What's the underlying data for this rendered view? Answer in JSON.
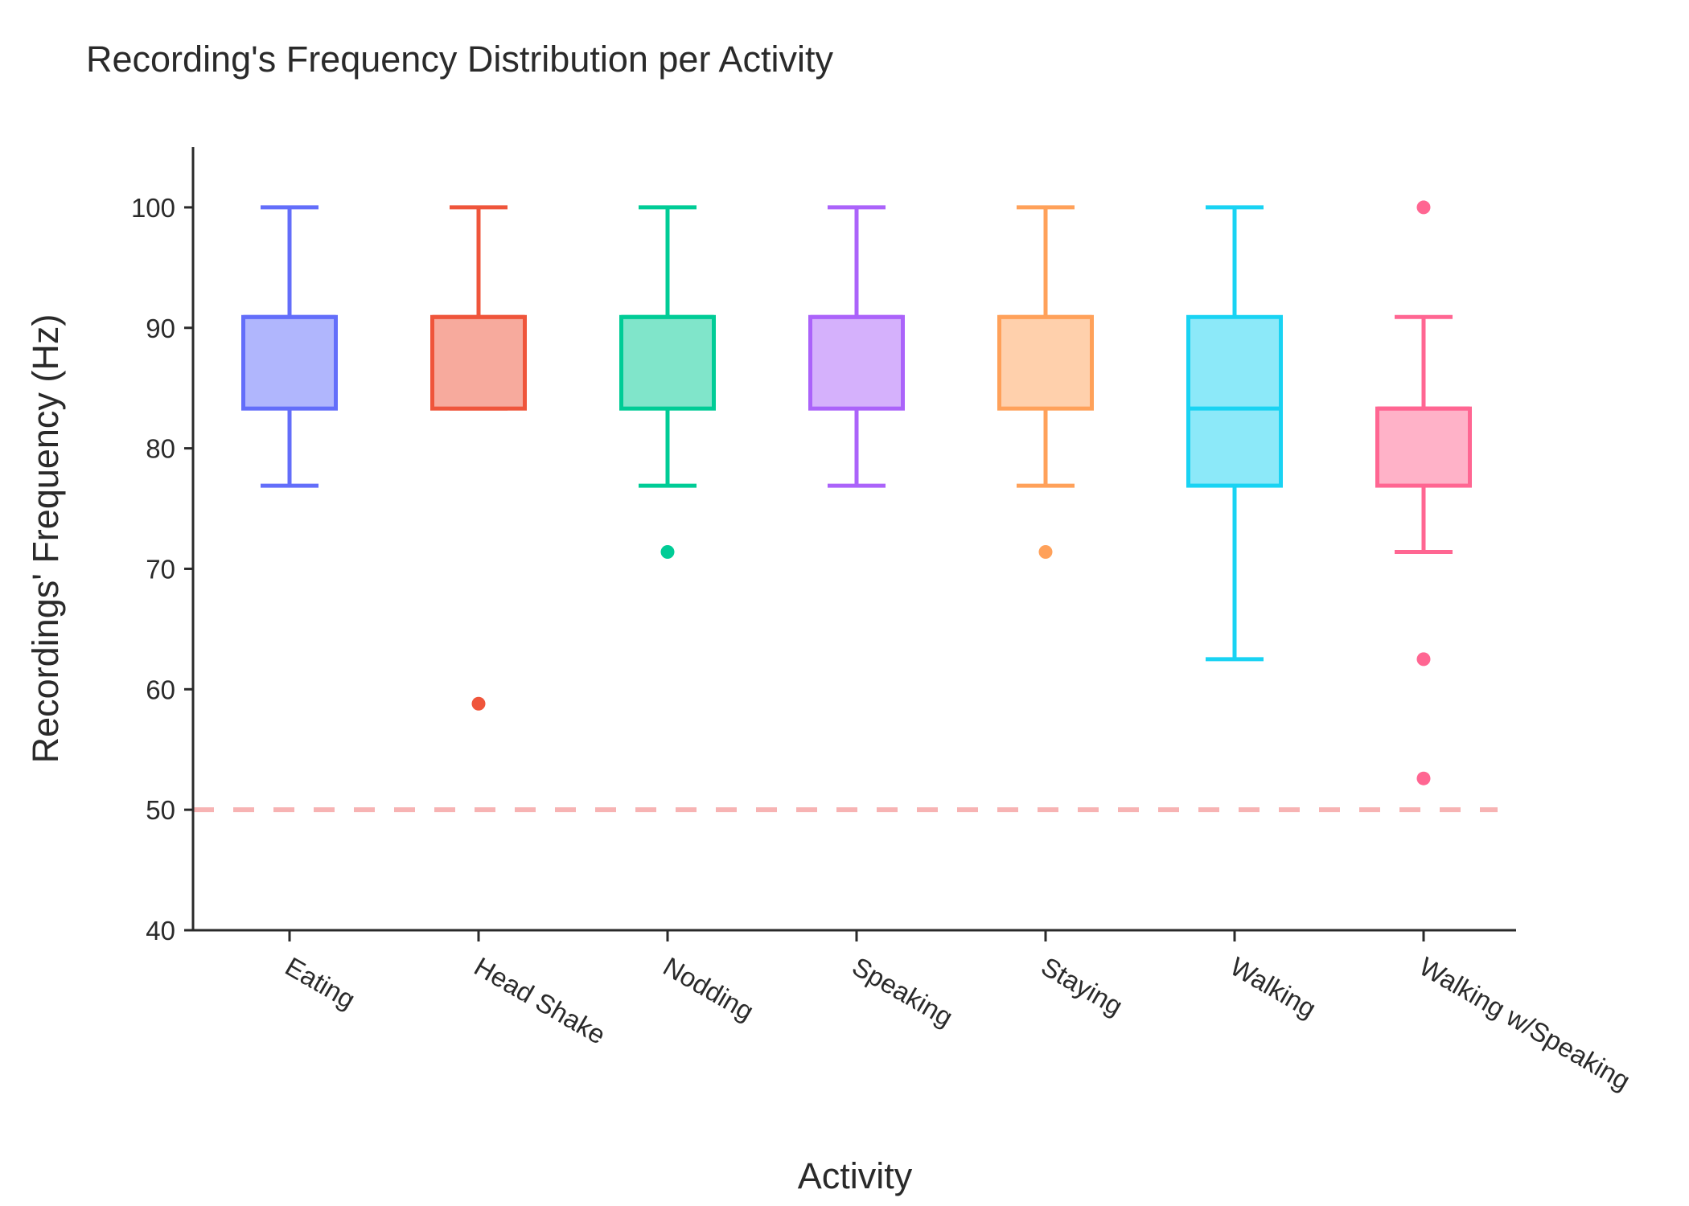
{
  "chart_data": {
    "type": "box",
    "title": "Recording's Frequency Distribution per Activity",
    "xlabel": "Activity",
    "ylabel": "Recordings' Frequency (Hz)",
    "ylim": [
      40,
      105
    ],
    "yticks": [
      40,
      50,
      60,
      70,
      80,
      90,
      100
    ],
    "grid": false,
    "reference_line": {
      "y": 50,
      "color": "#f7b3b3",
      "style": "dashed"
    },
    "categories": [
      "Eating",
      "Head Shake",
      "Nodding",
      "Speaking",
      "Staying",
      "Walking",
      "Walking w/Speaking"
    ],
    "series": [
      {
        "category": "Eating",
        "color": "#636efa",
        "fill": "#b0b6fd",
        "whisker_low": 76.9,
        "q1": 83.3,
        "median": 90.9,
        "q3": 90.9,
        "whisker_high": 100,
        "outliers": []
      },
      {
        "category": "Head Shake",
        "color": "#ef553b",
        "fill": "#f7aa9d",
        "whisker_low": 83.3,
        "q1": 83.3,
        "median": 90.9,
        "q3": 90.9,
        "whisker_high": 100,
        "outliers": [
          58.8
        ]
      },
      {
        "category": "Nodding",
        "color": "#00cc96",
        "fill": "#80e5ca",
        "whisker_low": 76.9,
        "q1": 83.3,
        "median": 90.9,
        "q3": 90.9,
        "whisker_high": 100,
        "outliers": [
          71.4
        ]
      },
      {
        "category": "Speaking",
        "color": "#ab63fa",
        "fill": "#d5b1fc",
        "whisker_low": 76.9,
        "q1": 83.3,
        "median": 90.9,
        "q3": 90.9,
        "whisker_high": 100,
        "outliers": []
      },
      {
        "category": "Staying",
        "color": "#ffa15a",
        "fill": "#ffd0ac",
        "whisker_low": 76.9,
        "q1": 83.3,
        "median": 90.9,
        "q3": 90.9,
        "whisker_high": 100,
        "outliers": [
          71.4
        ]
      },
      {
        "category": "Walking",
        "color": "#19d3f3",
        "fill": "#8ce9f9",
        "whisker_low": 62.5,
        "q1": 76.9,
        "median": 83.3,
        "q3": 90.9,
        "whisker_high": 100,
        "outliers": []
      },
      {
        "category": "Walking w/Speaking",
        "color": "#ff6692",
        "fill": "#ffb2c8",
        "whisker_low": 71.4,
        "q1": 76.9,
        "median": 83.3,
        "q3": 83.3,
        "whisker_high": 90.9,
        "outliers": [
          100,
          62.5,
          52.6
        ]
      }
    ]
  }
}
